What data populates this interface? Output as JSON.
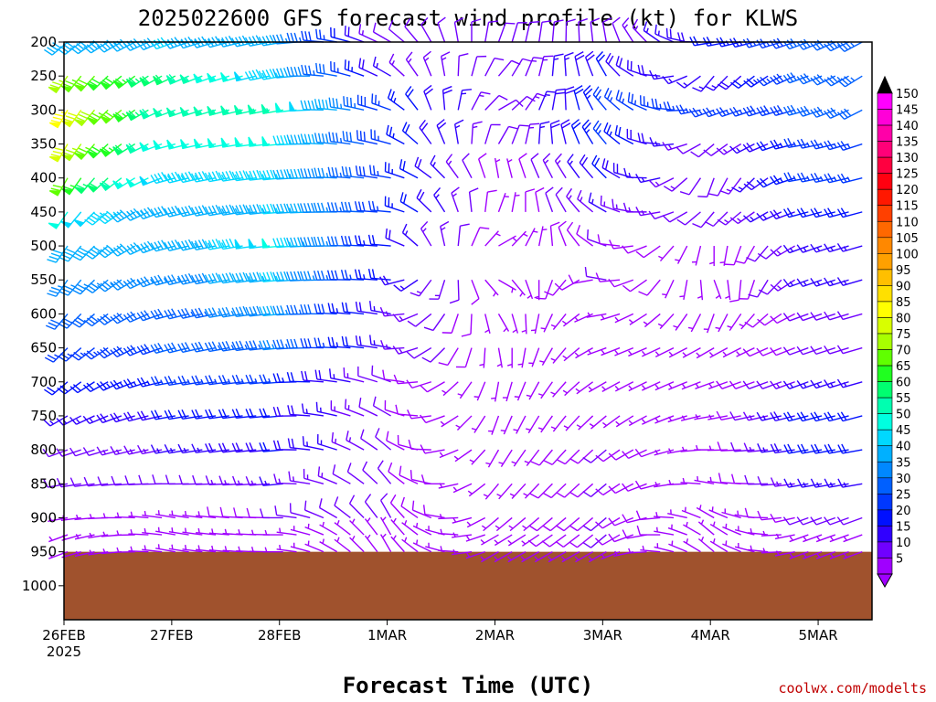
{
  "chart_data": {
    "type": "wind-barb-profile",
    "title": "2025022600 GFS forecast wind profile (kt) for KLWS",
    "xlabel": "Forecast Time (UTC)",
    "credit": "coolwx.com/modelts",
    "y_axis": {
      "scale": "pressure (hPa), inverted",
      "ylim": [
        1050,
        200
      ],
      "ticks": [
        200,
        250,
        300,
        350,
        400,
        450,
        500,
        550,
        600,
        650,
        700,
        750,
        800,
        850,
        900,
        950,
        1000
      ]
    },
    "x_axis": {
      "start": "2025-02-26T00Z",
      "end": "2025-03-05T12Z",
      "step_hours": 3,
      "ticks": [
        {
          "label": "26FEB",
          "sub": "2025",
          "hours": 0
        },
        {
          "label": "27FEB",
          "sub": "",
          "hours": 24
        },
        {
          "label": "28FEB",
          "sub": "",
          "hours": 48
        },
        {
          "label": "1MAR",
          "sub": "",
          "hours": 72
        },
        {
          "label": "2MAR",
          "sub": "",
          "hours": 96
        },
        {
          "label": "3MAR",
          "sub": "",
          "hours": 120
        },
        {
          "label": "4MAR",
          "sub": "",
          "hours": 144
        },
        {
          "label": "5MAR",
          "sub": "",
          "hours": 168
        }
      ]
    },
    "surface_pressure_hpa": 950,
    "ground_color": "#a0522d",
    "barb_levels_hpa": [
      200,
      250,
      300,
      350,
      400,
      450,
      500,
      550,
      600,
      650,
      700,
      750,
      800,
      850,
      900,
      925,
      950
    ],
    "speed_key": {
      "levels": [
        150,
        145,
        140,
        135,
        130,
        125,
        120,
        115,
        110,
        105,
        100,
        95,
        90,
        85,
        80,
        75,
        70,
        65,
        60,
        55,
        50,
        45,
        40,
        35,
        30,
        25,
        20,
        15,
        10,
        5
      ],
      "colors": [
        "#ff00ff",
        "#ff00d8",
        "#ff00a8",
        "#ff0078",
        "#ff0040",
        "#ff0010",
        "#ff1800",
        "#ff4000",
        "#ff6800",
        "#ff8800",
        "#ffa000",
        "#ffbf00",
        "#ffe000",
        "#ffff00",
        "#d8ff00",
        "#a8ff00",
        "#60ff00",
        "#20ff20",
        "#00ff70",
        "#00ffb0",
        "#00ffe0",
        "#00d8ff",
        "#00b0ff",
        "#0088ff",
        "#0060ff",
        "#0038ff",
        "#0010ff",
        "#3000ff",
        "#7000ff",
        "#a000ff"
      ]
    },
    "wind_profile": [
      {
        "hours": 0,
        "speed_kt": [
          40,
          75,
          85,
          80,
          70,
          50,
          40,
          35,
          30,
          25,
          20,
          15,
          10,
          10,
          5,
          5,
          5
        ],
        "dir_deg": [
          230,
          215,
          210,
          210,
          210,
          215,
          215,
          215,
          220,
          225,
          230,
          240,
          250,
          260,
          260,
          250,
          250
        ]
      },
      {
        "hours": 24,
        "speed_kt": [
          45,
          60,
          55,
          50,
          45,
          40,
          40,
          35,
          30,
          30,
          25,
          20,
          15,
          10,
          5,
          5,
          5
        ],
        "dir_deg": [
          250,
          245,
          250,
          255,
          255,
          255,
          255,
          255,
          255,
          255,
          260,
          260,
          260,
          270,
          280,
          280,
          280
        ]
      },
      {
        "hours": 48,
        "speed_kt": [
          40,
          45,
          55,
          50,
          45,
          45,
          50,
          45,
          40,
          35,
          25,
          20,
          20,
          15,
          10,
          5,
          5
        ],
        "dir_deg": [
          260,
          260,
          260,
          265,
          265,
          265,
          265,
          265,
          265,
          265,
          265,
          265,
          265,
          265,
          270,
          270,
          270
        ]
      },
      {
        "hours": 72,
        "speed_kt": [
          10,
          15,
          25,
          25,
          25,
          25,
          20,
          20,
          15,
          15,
          10,
          10,
          10,
          10,
          10,
          5,
          5
        ],
        "dir_deg": [
          300,
          300,
          290,
          285,
          280,
          275,
          275,
          275,
          280,
          280,
          290,
          300,
          310,
          320,
          330,
          330,
          330
        ]
      },
      {
        "hours": 96,
        "speed_kt": [
          10,
          10,
          10,
          10,
          5,
          5,
          5,
          5,
          5,
          5,
          5,
          5,
          5,
          5,
          5,
          5,
          5
        ],
        "dir_deg": [
          20,
          40,
          60,
          30,
          350,
          20,
          60,
          120,
          150,
          170,
          190,
          200,
          210,
          220,
          230,
          240,
          240
        ]
      },
      {
        "hours": 120,
        "speed_kt": [
          10,
          20,
          25,
          25,
          20,
          15,
          10,
          10,
          5,
          5,
          5,
          5,
          10,
          10,
          10,
          10,
          5
        ],
        "dir_deg": [
          350,
          330,
          320,
          320,
          315,
          300,
          290,
          280,
          260,
          250,
          240,
          230,
          230,
          230,
          230,
          230,
          240
        ]
      },
      {
        "hours": 144,
        "speed_kt": [
          20,
          15,
          25,
          10,
          10,
          10,
          5,
          5,
          5,
          5,
          5,
          5,
          5,
          5,
          5,
          5,
          5
        ],
        "dir_deg": [
          260,
          220,
          250,
          230,
          200,
          220,
          180,
          160,
          200,
          240,
          250,
          260,
          270,
          280,
          300,
          310,
          310
        ]
      },
      {
        "hours": 165,
        "speed_kt": [
          30,
          30,
          30,
          25,
          25,
          20,
          15,
          15,
          10,
          10,
          15,
          20,
          20,
          15,
          10,
          5,
          5
        ],
        "dir_deg": [
          250,
          250,
          255,
          260,
          260,
          255,
          250,
          250,
          250,
          250,
          250,
          255,
          260,
          260,
          250,
          250,
          250
        ]
      },
      {
        "hours": 180,
        "speed_kt": [
          35,
          35,
          30,
          25,
          25,
          20,
          15,
          15,
          10,
          10,
          15,
          20,
          20,
          15,
          10,
          5,
          5
        ],
        "dir_deg": [
          240,
          235,
          240,
          250,
          255,
          255,
          255,
          255,
          255,
          255,
          255,
          255,
          260,
          260,
          250,
          250,
          250
        ]
      }
    ]
  }
}
